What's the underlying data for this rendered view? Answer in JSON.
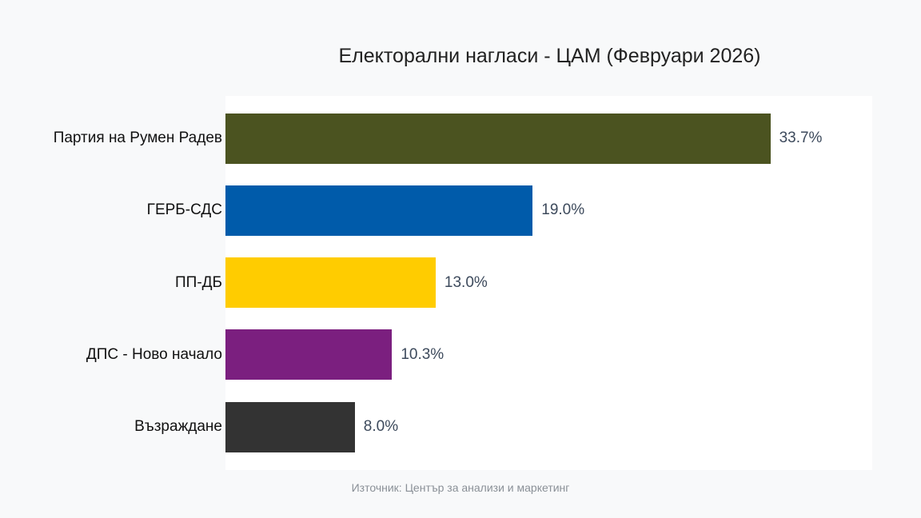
{
  "chart_data": {
    "type": "bar",
    "orientation": "horizontal",
    "title": "Електорални нагласи - ЦАМ (Февруари 2026)",
    "categories": [
      "Партия на Румен Радев",
      "ГЕРБ-СДС",
      "ПП-ДБ",
      "ДПС - Ново начало",
      "Възраждане"
    ],
    "values": [
      33.7,
      19.0,
      13.0,
      10.3,
      8.0
    ],
    "value_labels": [
      "33.7%",
      "19.0%",
      "13.0%",
      "10.3%",
      "8.0%"
    ],
    "colors": [
      "#4b5320",
      "#005baa",
      "#ffcc00",
      "#7b1f7f",
      "#333333"
    ],
    "xlim": [
      0,
      40
    ],
    "grid": false,
    "source": "Източник: Център за анализи и маркетинг"
  }
}
